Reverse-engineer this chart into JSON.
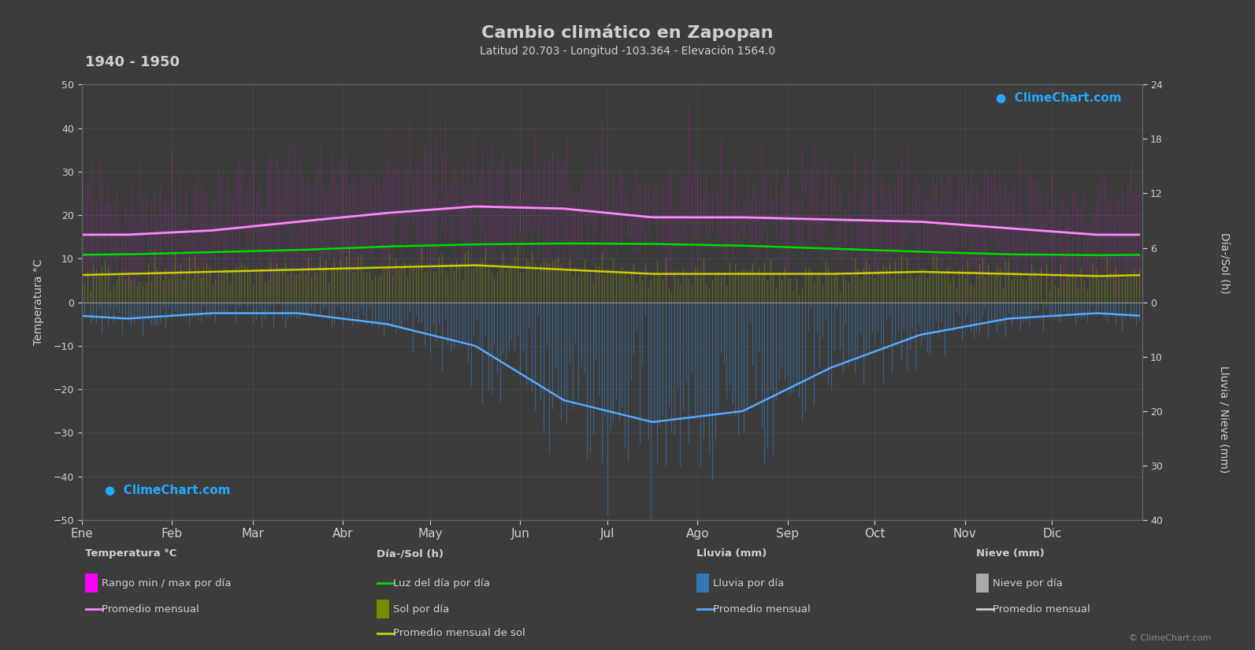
{
  "title": "Cambio climático en Zapopan",
  "subtitle": "Latitud 20.703 - Longitud -103.364 - Elevación 1564.0",
  "period": "1940 - 1950",
  "bg": "#3c3c3c",
  "text_color": "#d0d0d0",
  "months": [
    "Ene",
    "Feb",
    "Mar",
    "Abr",
    "May",
    "Jun",
    "Jul",
    "Ago",
    "Sep",
    "Oct",
    "Nov",
    "Dic"
  ],
  "month_days": [
    0,
    31,
    59,
    90,
    120,
    151,
    181,
    212,
    243,
    273,
    304,
    334,
    365
  ],
  "temp_ylim": [
    -50,
    50
  ],
  "temp_avg": [
    15.5,
    16.5,
    18.5,
    20.5,
    22.0,
    21.5,
    19.5,
    19.5,
    19.0,
    18.5,
    17.0,
    15.5
  ],
  "temp_max_avg": [
    25.0,
    26.5,
    28.5,
    30.5,
    31.0,
    28.5,
    26.0,
    26.5,
    26.5,
    26.0,
    25.0,
    24.5
  ],
  "temp_min_avg": [
    6.0,
    7.5,
    9.0,
    11.5,
    13.5,
    14.0,
    13.5,
    13.5,
    13.0,
    11.5,
    8.5,
    6.5
  ],
  "sun_avg": [
    6.5,
    7.0,
    7.5,
    8.0,
    8.5,
    7.5,
    6.5,
    6.5,
    6.5,
    7.0,
    6.5,
    6.0
  ],
  "daylight_avg": [
    11.0,
    11.5,
    12.0,
    12.8,
    13.3,
    13.5,
    13.4,
    13.0,
    12.3,
    11.6,
    11.0,
    10.8
  ],
  "rain_avg_mm": [
    3.0,
    2.0,
    2.0,
    4.0,
    8.0,
    18.0,
    22.0,
    20.0,
    12.0,
    6.0,
    3.0,
    2.0
  ],
  "color_temp_band": "#ff00ff",
  "color_sun_band": "#7a8a00",
  "color_temp_line": "#ff88ff",
  "color_daylight_line": "#00dd00",
  "color_sun_line": "#cccc00",
  "color_rain_bar": "#3377bb",
  "color_rain_line": "#55aaff",
  "color_snow_bar": "#aaaaaa",
  "color_snow_line": "#cccccc",
  "rain_scale": 1.25,
  "sol_scale": 2.083
}
